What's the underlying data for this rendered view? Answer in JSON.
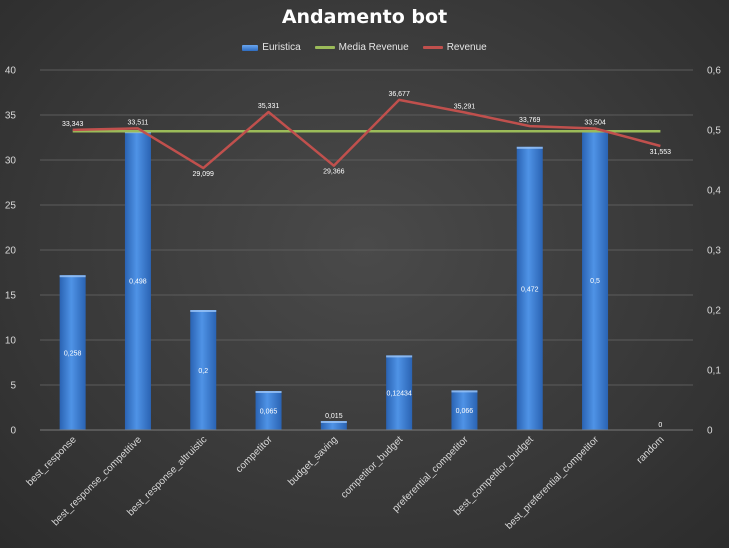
{
  "chart_data": {
    "type": "bar",
    "title": "Andamento bot",
    "categories": [
      "best_response",
      "best_response_competitive",
      "best_response_altruistic",
      "competitor",
      "budget_saving",
      "competitor_budget",
      "preferential_competitor",
      "best_competitor_budget",
      "best_preferential_competitor",
      "random"
    ],
    "series": [
      {
        "name": "Euristica",
        "type": "bar",
        "axis": "right",
        "values": [
          0.258,
          0.498,
          0.2,
          0.065,
          0.015,
          0.12434,
          0.066,
          0.472,
          0.5,
          0
        ],
        "labels": [
          "0,258",
          "0,498",
          "0,2",
          "0,065",
          "0,015",
          "0,12434",
          "0,066",
          "0,472",
          "0,5",
          "0"
        ],
        "color": "#3d7fd6"
      },
      {
        "name": "Media Revenue",
        "type": "line",
        "axis": "left",
        "values": [
          33.2,
          33.2,
          33.2,
          33.2,
          33.2,
          33.2,
          33.2,
          33.2,
          33.2,
          33.2
        ],
        "color": "#9bbb59"
      },
      {
        "name": "Revenue",
        "type": "line",
        "axis": "left",
        "values": [
          33.343,
          33.511,
          29.099,
          35.331,
          29.366,
          36.677,
          35.291,
          33.769,
          33.504,
          31.553
        ],
        "labels": [
          "33,343",
          "33,511",
          "29,099",
          "35,331",
          "29,366",
          "36,677",
          "35,291",
          "33,769",
          "33,504",
          "31,553"
        ],
        "color": "#c0504d"
      }
    ],
    "y_left": {
      "ylim": [
        0,
        40
      ],
      "ticks": [
        "0",
        "5",
        "10",
        "15",
        "20",
        "25",
        "30",
        "35",
        "40"
      ]
    },
    "y_right": {
      "ylim": [
        0,
        0.6
      ],
      "ticks": [
        "0",
        "0,1",
        "0,2",
        "0,3",
        "0,4",
        "0,5",
        "0,6"
      ]
    },
    "grid": true,
    "legend_position": "top"
  }
}
